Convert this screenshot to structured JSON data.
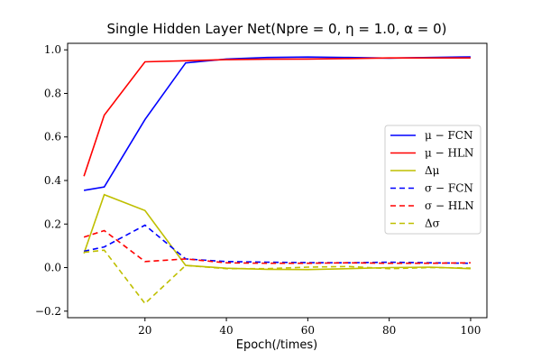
{
  "chart_data": {
    "type": "line",
    "title": "Single Hidden Layer Net(Npre = 0, η = 1.0, α = 0)",
    "xlabel": "Epoch(/times)",
    "ylabel": "",
    "xlim": [
      1,
      104
    ],
    "ylim": [
      -0.23,
      1.03
    ],
    "xticks": [
      20,
      40,
      60,
      80,
      100
    ],
    "yticks": [
      -0.2,
      0.0,
      0.2,
      0.4,
      0.6,
      0.8,
      1.0
    ],
    "xtick_labels": [
      "20",
      "40",
      "60",
      "80",
      "100"
    ],
    "ytick_labels": [
      "−0.2",
      "0.0",
      "0.2",
      "0.4",
      "0.6",
      "0.8",
      "1.0"
    ],
    "grid": false,
    "legend_position": "center-right",
    "x": [
      5,
      10,
      20,
      30,
      40,
      50,
      60,
      70,
      80,
      90,
      100
    ],
    "series": [
      {
        "name": "μ − FCN",
        "color": "#0000ff",
        "dash": "solid",
        "values": [
          0.355,
          0.37,
          0.68,
          0.94,
          0.958,
          0.965,
          0.967,
          0.965,
          0.962,
          0.965,
          0.968
        ]
      },
      {
        "name": "μ − HLN",
        "color": "#ff0000",
        "dash": "solid",
        "values": [
          0.42,
          0.7,
          0.945,
          0.95,
          0.955,
          0.957,
          0.958,
          0.96,
          0.963,
          0.963,
          0.963
        ]
      },
      {
        "name": "Δμ",
        "color": "#bfbf00",
        "dash": "solid",
        "values": [
          0.065,
          0.335,
          0.262,
          0.01,
          -0.003,
          -0.008,
          -0.009,
          -0.005,
          0.0,
          0.002,
          -0.005
        ]
      },
      {
        "name": "σ − FCN",
        "color": "#0000ff",
        "dash": "dashed",
        "values": [
          0.075,
          0.095,
          0.195,
          0.04,
          0.028,
          0.025,
          0.023,
          0.022,
          0.025,
          0.022,
          0.02
        ]
      },
      {
        "name": "σ − HLN",
        "color": "#ff0000",
        "dash": "dashed",
        "values": [
          0.14,
          0.17,
          0.028,
          0.04,
          0.022,
          0.02,
          0.02,
          0.022,
          0.02,
          0.02,
          0.022
        ]
      },
      {
        "name": "Δσ",
        "color": "#bfbf00",
        "dash": "dashed",
        "values": [
          0.07,
          0.08,
          -0.165,
          0.01,
          -0.005,
          -0.005,
          0.002,
          0.005,
          -0.005,
          0.0,
          -0.002
        ]
      }
    ]
  }
}
